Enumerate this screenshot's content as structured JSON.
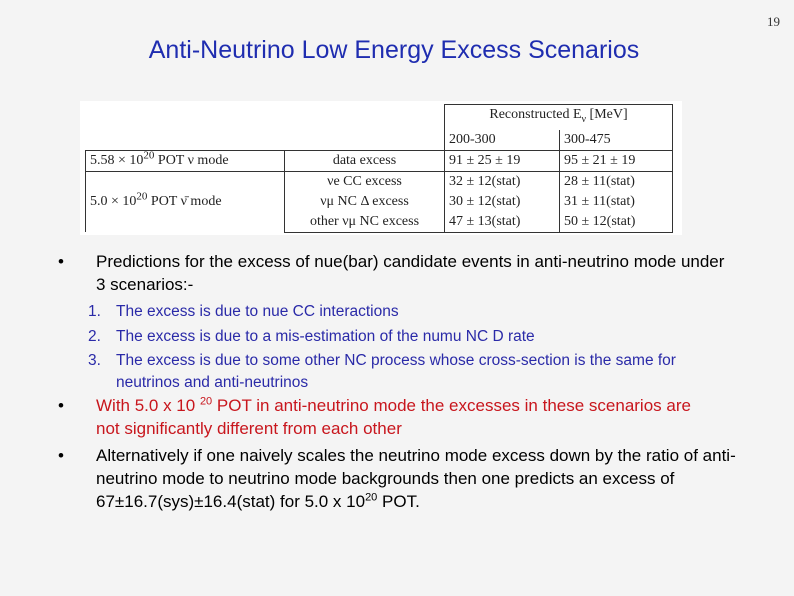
{
  "page_number": "19",
  "title": "Anti-Neutrino Low Energy Excess Scenarios",
  "table": {
    "header": {
      "label": "Reconstructed E",
      "sub": "ν",
      "units": " [MeV]"
    },
    "bins": [
      "200-300",
      "300-475"
    ],
    "rows": [
      {
        "dataset_pre": "5.58 × 10",
        "dataset_exp": "20",
        "dataset_post": " POT ν mode",
        "label": "data excess",
        "v1": "91 ± 25 ± 19",
        "v2": "95 ± 21 ± 19"
      },
      {
        "dataset_pre": "",
        "dataset_exp": "",
        "dataset_post": "",
        "label": "νe CC excess",
        "v1": "32 ± 12(stat)",
        "v2": "28 ± 11(stat)"
      },
      {
        "dataset_pre": "5.0 × 10",
        "dataset_exp": "20",
        "dataset_post": " POT ν̄ mode",
        "label": "νμ NC Δ excess",
        "v1": "30 ± 12(stat)",
        "v2": "31 ± 11(stat)"
      },
      {
        "dataset_pre": "",
        "dataset_exp": "",
        "dataset_post": "",
        "label": "other νμ NC excess",
        "v1": "47 ± 13(stat)",
        "v2": "50 ± 12(stat)"
      }
    ]
  },
  "bullets": {
    "b1": "Predictions for the excess of nue(bar) candidate events in anti-neutrino mode under 3 scenarios:-",
    "scenarios": [
      {
        "num": "1.",
        "text": "The excess is due to nue CC interactions"
      },
      {
        "num": "2.",
        "text": "The excess is due to a mis-estimation of the numu NC D rate"
      },
      {
        "num": "3.",
        "text": "The excess is due to some other NC process whose cross-section is the same for neutrinos and anti-neutrinos"
      }
    ],
    "b2_pre": "With 5.0 x 10 ",
    "b2_exp": "20",
    "b2_post": " POT in anti-neutrino mode the excesses in these scenarios are not significantly different from each other",
    "b3_pre": "Alternatively if one naively scales the neutrino mode excess down by the ratio of anti-neutrino mode to neutrino mode backgrounds then one predicts an excess of 67±16.7(sys)±16.4(stat) for 5.0 x 10",
    "b3_exp": "20",
    "b3_post": " POT.",
    "bullet_char": "•"
  }
}
